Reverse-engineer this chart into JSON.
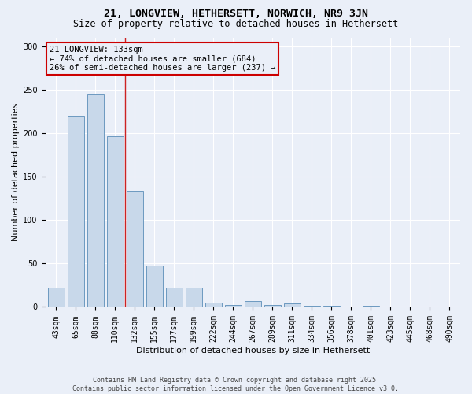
{
  "title1": "21, LONGVIEW, HETHERSETT, NORWICH, NR9 3JN",
  "title2": "Size of property relative to detached houses in Hethersett",
  "xlabel": "Distribution of detached houses by size in Hethersett",
  "ylabel": "Number of detached properties",
  "bar_color": "#c8d8ea",
  "bar_edge_color": "#5b8db8",
  "categories": [
    "43sqm",
    "65sqm",
    "88sqm",
    "110sqm",
    "132sqm",
    "155sqm",
    "177sqm",
    "199sqm",
    "222sqm",
    "244sqm",
    "267sqm",
    "289sqm",
    "311sqm",
    "334sqm",
    "356sqm",
    "378sqm",
    "401sqm",
    "423sqm",
    "445sqm",
    "468sqm",
    "490sqm"
  ],
  "values": [
    22,
    220,
    245,
    196,
    133,
    48,
    22,
    22,
    5,
    2,
    7,
    2,
    4,
    1,
    1,
    0,
    1,
    0,
    0,
    0,
    0
  ],
  "vline_bar_index": 4,
  "vline_color": "#cc2222",
  "annotation_text": "21 LONGVIEW: 133sqm\n← 74% of detached houses are smaller (684)\n26% of semi-detached houses are larger (237) →",
  "annotation_box_color": "#cc0000",
  "ylim": [
    0,
    310
  ],
  "yticks": [
    0,
    50,
    100,
    150,
    200,
    250,
    300
  ],
  "background_color": "#eaeff8",
  "grid_color": "#ffffff",
  "footer_line1": "Contains HM Land Registry data © Crown copyright and database right 2025.",
  "footer_line2": "Contains public sector information licensed under the Open Government Licence v3.0.",
  "title_fontsize": 9.5,
  "subtitle_fontsize": 8.5,
  "axis_label_fontsize": 8,
  "tick_fontsize": 7,
  "footer_fontsize": 6,
  "annotation_fontsize": 7.5
}
